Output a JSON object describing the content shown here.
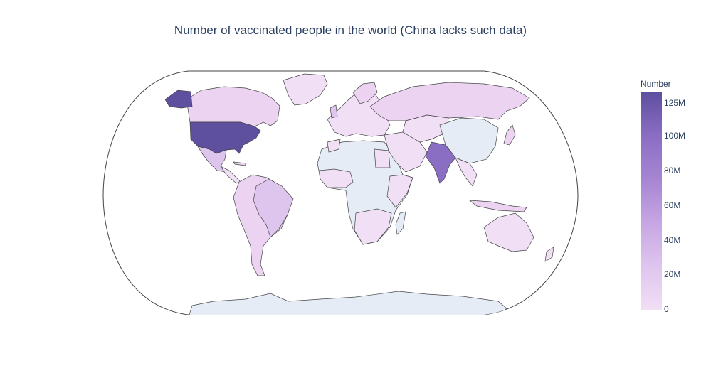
{
  "title": "Number of vaccinated people in the world (China lacks such data)",
  "colorbar": {
    "title": "Number",
    "ticks": [
      "125M",
      "100M",
      "80M",
      "60M",
      "40M",
      "20M",
      "0"
    ],
    "colors": [
      "#f1dff5",
      "#dec5ee",
      "#c6a6e3",
      "#a685d3",
      "#8a6ec4",
      "#5e4f9f"
    ]
  },
  "colors": {
    "no_data": "#e5ecf6",
    "border": "#444444",
    "frame": "#444444",
    "high": "#5e4f9f",
    "mid_high": "#8a6ec4",
    "mid": "#dec5ee",
    "low": "#f1dff5",
    "lowish": "#ebd3f1"
  }
}
